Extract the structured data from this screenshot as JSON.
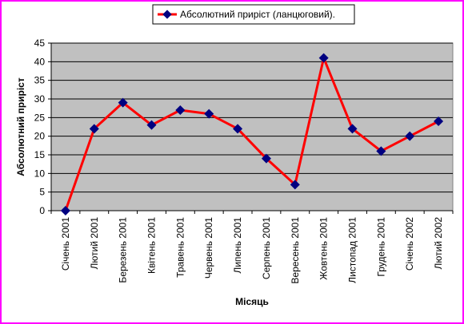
{
  "colors": {
    "frame": "#ff00ff",
    "plot_background": "#c0c0c0",
    "line": "#ff0000",
    "marker": "#000080",
    "grid": "#000000"
  },
  "chart_data": {
    "type": "line",
    "title": "",
    "xlabel": "Місяць",
    "ylabel": "Абсолютний приріст",
    "ylim": [
      0,
      45
    ],
    "yticks": [
      0,
      5,
      10,
      15,
      20,
      25,
      30,
      35,
      40,
      45
    ],
    "grid": "horizontal",
    "legend_position": "top",
    "categories": [
      "Січень 2001",
      "Лютий 2001",
      "Березень 2001",
      "Квітень 2001",
      "Травень 2001",
      "Червень 2001",
      "Липень 2001",
      "Серпень 2001",
      "Вересень 2001",
      "Жовтень 2001",
      "Листопад 2001",
      "Грудень 2001",
      "Січень 2002",
      "Лютий 2002"
    ],
    "series": [
      {
        "name": "Абсолютний приріст (ланцюговий).",
        "values": [
          0,
          22,
          29,
          23,
          27,
          26,
          22,
          14,
          7,
          41,
          22,
          16,
          20,
          24
        ],
        "marker": "diamond"
      }
    ]
  }
}
